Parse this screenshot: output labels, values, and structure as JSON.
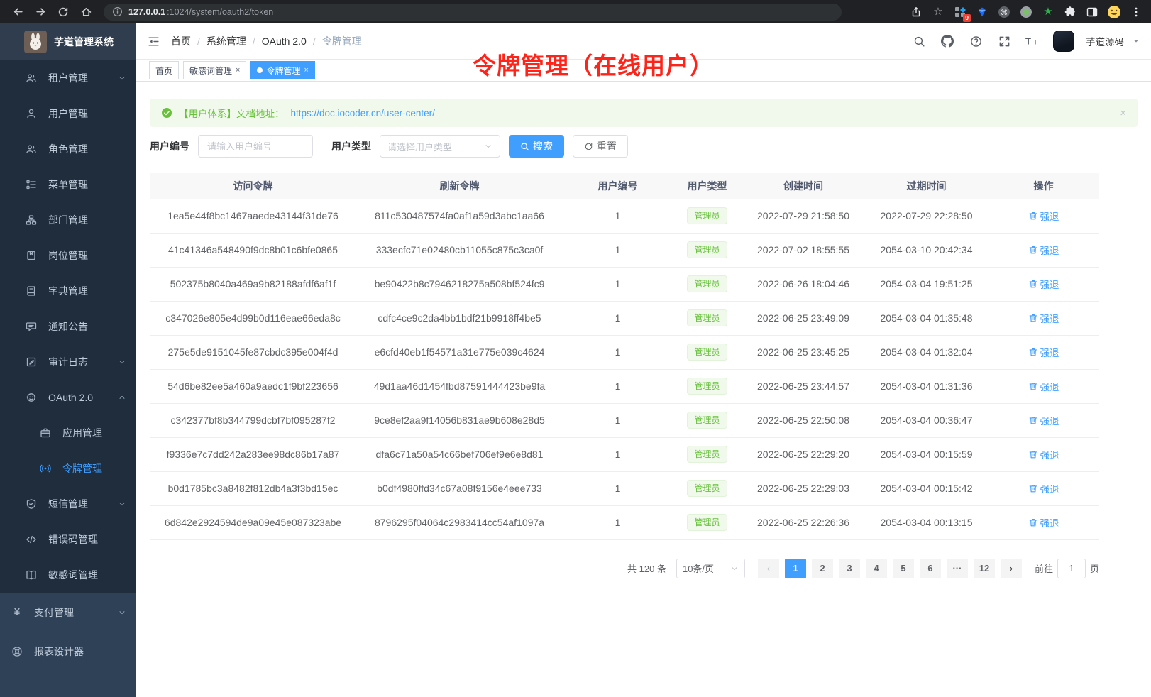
{
  "colors": {
    "primary": "#409eff",
    "success": "#67c23a",
    "annotation": "#fe2419",
    "sidebar_bg": "#1f2d3d",
    "sidebar_logo_bg": "#2f3d4f",
    "sidebar_light_bg": "#2f4157",
    "active_tab_bg": "#409eff",
    "tag_bg": "#f0f9eb",
    "tag_border": "#e1f3d8"
  },
  "browser": {
    "url_host": "127.0.0.1",
    "url_rest": ":1024/system/oauth2/token",
    "extension_badge": "9"
  },
  "app": {
    "title": "芋道管理系统",
    "user": "芋道源码"
  },
  "breadcrumb": {
    "sep": "/",
    "item1": "首页",
    "item2": "系统管理",
    "item3": "OAuth 2.0",
    "item4": "令牌管理"
  },
  "annotation": {
    "text": "令牌管理（在线用户）"
  },
  "tabs": [
    {
      "name": "tab-home",
      "label": "首页",
      "closable": false,
      "active": false
    },
    {
      "name": "tab-sensitive-word",
      "label": "敏感词管理",
      "closable": true,
      "active": false
    },
    {
      "name": "tab-token",
      "label": "令牌管理",
      "closable": true,
      "active": true
    }
  ],
  "sidebar": {
    "sections": [
      {
        "items": [
          {
            "name": "sidebar-item-tenant",
            "icon": "tenant-icon",
            "label": "租户管理",
            "chevron": true
          },
          {
            "name": "sidebar-item-user",
            "icon": "user-icon",
            "label": "用户管理"
          },
          {
            "name": "sidebar-item-role",
            "icon": "role-icon",
            "label": "角色管理"
          },
          {
            "name": "sidebar-item-menu",
            "icon": "menu-icon",
            "label": "菜单管理"
          },
          {
            "name": "sidebar-item-dept",
            "icon": "dept-icon",
            "label": "部门管理"
          },
          {
            "name": "sidebar-item-post",
            "icon": "post-icon",
            "label": "岗位管理"
          },
          {
            "name": "sidebar-item-dict",
            "icon": "dict-icon",
            "label": "字典管理"
          },
          {
            "name": "sidebar-item-notice",
            "icon": "notice-icon",
            "label": "通知公告"
          },
          {
            "name": "sidebar-item-audit-log",
            "icon": "audit-icon",
            "label": "审计日志",
            "chevron": true
          },
          {
            "name": "sidebar-item-oauth2",
            "icon": "oauth-icon",
            "label": "OAuth 2.0",
            "chevron": true,
            "expanded": true
          },
          {
            "name": "sidebar-item-oauth2-app",
            "icon": "app-icon",
            "label": "应用管理",
            "sub": true
          },
          {
            "name": "sidebar-item-oauth2-token",
            "icon": "token-icon",
            "label": "令牌管理",
            "sub": true,
            "active": true
          },
          {
            "name": "sidebar-item-sms",
            "icon": "sms-icon",
            "label": "短信管理",
            "chevron": true
          },
          {
            "name": "sidebar-item-error-code",
            "icon": "errcode-icon",
            "label": "错误码管理"
          },
          {
            "name": "sidebar-item-sensitive-word",
            "icon": "sensitive-icon",
            "label": "敏感词管理"
          }
        ]
      },
      {
        "light": true,
        "items": [
          {
            "name": "sidebar-item-pay",
            "icon": "pay-icon",
            "label": "支付管理",
            "chevron": true
          },
          {
            "name": "sidebar-item-report-designer",
            "icon": "report-icon",
            "label": "报表设计器"
          }
        ]
      }
    ]
  },
  "alert": {
    "text": "【用户体系】文档地址：",
    "link": "https://doc.iocoder.cn/user-center/"
  },
  "filters": {
    "user_id_label": "用户编号",
    "user_id_placeholder": "请输入用户编号",
    "user_type_label": "用户类型",
    "user_type_placeholder": "请选择用户类型",
    "search_label": "搜索",
    "reset_label": "重置"
  },
  "table": {
    "headers": [
      "访问令牌",
      "刷新令牌",
      "用户编号",
      "用户类型",
      "创建时间",
      "过期时间",
      "操作"
    ],
    "action_label": "强退",
    "rows": [
      {
        "access": "1ea5e44f8bc1467aaede43144f31de76",
        "refresh": "811c530487574fa0af1a59d3abc1aa66",
        "user_id": "1",
        "user_type": "管理员",
        "created": "2022-07-29 21:58:50",
        "expires": "2022-07-29 22:28:50"
      },
      {
        "access": "41c41346a548490f9dc8b01c6bfe0865",
        "refresh": "333ecfc71e02480cb11055c875c3ca0f",
        "user_id": "1",
        "user_type": "管理员",
        "created": "2022-07-02 18:55:55",
        "expires": "2054-03-10 20:42:34"
      },
      {
        "access": "502375b8040a469a9b82188afdf6af1f",
        "refresh": "be90422b8c7946218275a508bf524fc9",
        "user_id": "1",
        "user_type": "管理员",
        "created": "2022-06-26 18:04:46",
        "expires": "2054-03-04 19:51:25"
      },
      {
        "access": "c347026e805e4d99b0d116eae66eda8c",
        "refresh": "cdfc4ce9c2da4bb1bdf21b9918ff4be5",
        "user_id": "1",
        "user_type": "管理员",
        "created": "2022-06-25 23:49:09",
        "expires": "2054-03-04 01:35:48"
      },
      {
        "access": "275e5de9151045fe87cbdc395e004f4d",
        "refresh": "e6cfd40eb1f54571a31e775e039c4624",
        "user_id": "1",
        "user_type": "管理员",
        "created": "2022-06-25 23:45:25",
        "expires": "2054-03-04 01:32:04"
      },
      {
        "access": "54d6be82ee5a460a9aedc1f9bf223656",
        "refresh": "49d1aa46d1454fbd87591444423be9fa",
        "user_id": "1",
        "user_type": "管理员",
        "created": "2022-06-25 23:44:57",
        "expires": "2054-03-04 01:31:36"
      },
      {
        "access": "c342377bf8b344799dcbf7bf095287f2",
        "refresh": "9ce8ef2aa9f14056b831ae9b608e28d5",
        "user_id": "1",
        "user_type": "管理员",
        "created": "2022-06-25 22:50:08",
        "expires": "2054-03-04 00:36:47"
      },
      {
        "access": "f9336e7c7dd242a283ee98dc86b17a87",
        "refresh": "dfa6c71a50a54c66bef706ef9e6e8d81",
        "user_id": "1",
        "user_type": "管理员",
        "created": "2022-06-25 22:29:20",
        "expires": "2054-03-04 00:15:59"
      },
      {
        "access": "b0d1785bc3a8482f812db4a3f3bd15ec",
        "refresh": "b0df4980ffd34c67a08f9156e4eee733",
        "user_id": "1",
        "user_type": "管理员",
        "created": "2022-06-25 22:29:03",
        "expires": "2054-03-04 00:15:42"
      },
      {
        "access": "6d842e2924594de9a09e45e087323abe",
        "refresh": "8796295f04064c2983414cc54af1097a",
        "user_id": "1",
        "user_type": "管理员",
        "created": "2022-06-25 22:26:36",
        "expires": "2054-03-04 00:13:15"
      }
    ]
  },
  "pagination": {
    "total_label": "共 120 条",
    "page_size": "10条/页",
    "prev": "‹",
    "next": "›",
    "pages": [
      {
        "label": "1",
        "active": true
      },
      {
        "label": "2"
      },
      {
        "label": "3"
      },
      {
        "label": "4"
      },
      {
        "label": "5"
      },
      {
        "label": "6"
      },
      {
        "label": "···",
        "ellipsis": true
      },
      {
        "label": "12"
      }
    ],
    "goto_label": "前往",
    "goto_value": "1",
    "goto_suffix": "页"
  }
}
